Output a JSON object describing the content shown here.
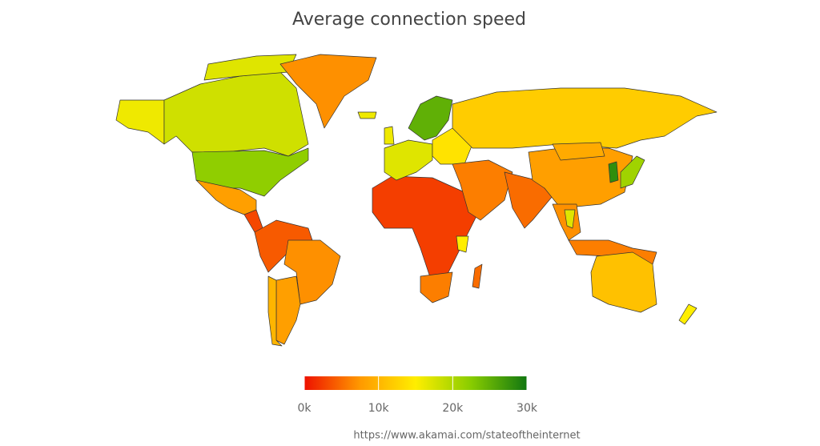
{
  "chart_data": {
    "type": "choropleth",
    "title": "Average connection speed",
    "values": [
      16000,
      18000,
      17000,
      22000,
      8000,
      3000,
      7000,
      16000,
      4000,
      7000,
      8000,
      10000,
      2500,
      15000,
      6000,
      5000,
      16000,
      25000,
      17000,
      14000,
      12000,
      6000,
      5000,
      8000,
      9000,
      7000,
      17000,
      28000,
      21000,
      6000,
      11000,
      15000
    ],
    "colorbar": {
      "lim": [
        0,
        30000
      ],
      "colors": [
        "#ee1100",
        "#ff9900",
        "#ffee00",
        "#88cc00",
        "#117711"
      ],
      "ticks": [
        {
          "value": 0,
          "label": "0k"
        },
        {
          "value": 10000,
          "label": "10k"
        },
        {
          "value": 20000,
          "label": "20k"
        },
        {
          "value": 30000,
          "label": "30k"
        }
      ]
    },
    "source": "https://www.akamai.com/stateoftheinternet"
  }
}
